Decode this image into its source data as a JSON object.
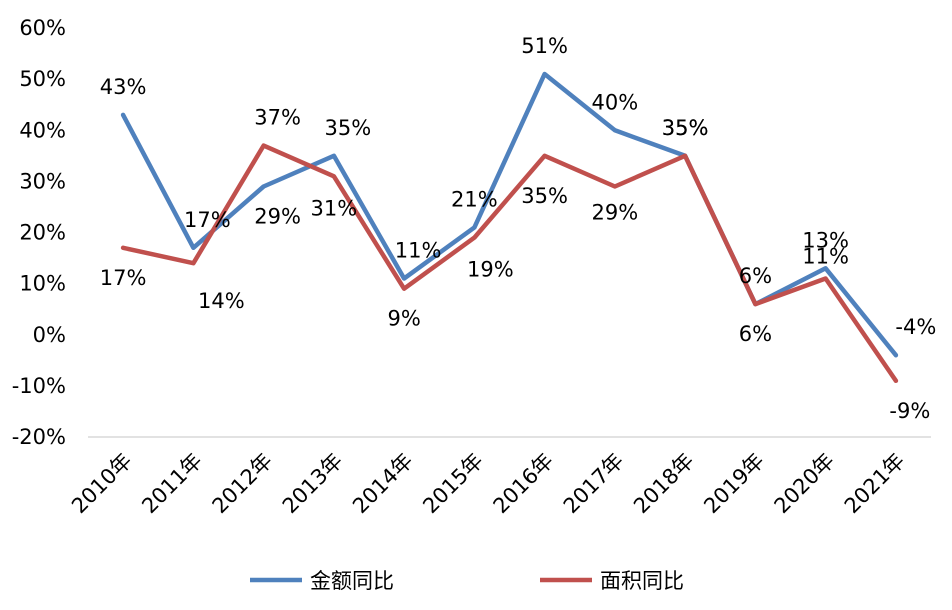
{
  "chart_data": {
    "type": "line",
    "title": "",
    "xlabel": "",
    "ylabel": "",
    "categories": [
      "2010年",
      "2011年",
      "2012年",
      "2013年",
      "2014年",
      "2015年",
      "2016年",
      "2017年",
      "2018年",
      "2019年",
      "2020年",
      "2021年"
    ],
    "ylim": [
      -20,
      60
    ],
    "yticks": [
      -20,
      -10,
      0,
      10,
      20,
      30,
      40,
      50,
      60
    ],
    "ytick_labels": [
      "-20%",
      "-10%",
      "0%",
      "10%",
      "20%",
      "30%",
      "40%",
      "50%",
      "60%"
    ],
    "grid": false,
    "legend_position": "bottom",
    "series": [
      {
        "name": "金额同比",
        "color": "#4f81bd",
        "values": [
          43,
          17,
          29,
          35,
          11,
          21,
          51,
          40,
          35,
          6,
          13,
          -4
        ],
        "labels": [
          "43%",
          "17%",
          "29%",
          "35%",
          "11%",
          "21%",
          "51%",
          "40%",
          "35%",
          "6%",
          "13%",
          "-4%"
        ]
      },
      {
        "name": "面积同比",
        "color": "#c0504d",
        "values": [
          17,
          14,
          37,
          31,
          9,
          19,
          35,
          29,
          35,
          6,
          11,
          -9
        ],
        "labels": [
          "17%",
          "14%",
          "37%",
          "31%",
          "9%",
          "19%",
          "35%",
          "29%",
          "35%",
          "6%",
          "11%",
          "-9%"
        ]
      }
    ]
  }
}
